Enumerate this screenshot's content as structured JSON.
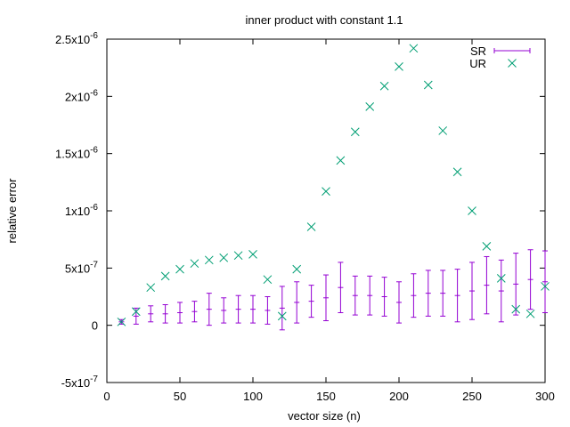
{
  "chart_data": {
    "type": "scatter",
    "title": "inner product with constant 1.1",
    "xlabel": "vector size (n)",
    "ylabel": "relative error",
    "xlim": [
      0,
      300
    ],
    "ylim": [
      -5e-07,
      2.5e-06
    ],
    "x_ticks": [
      0,
      50,
      100,
      150,
      200,
      250,
      300
    ],
    "y_ticks": [
      {
        "value": -5e-07,
        "base": "-5x10",
        "exp": "-7"
      },
      {
        "value": 0,
        "base": "0",
        "exp": ""
      },
      {
        "value": 5e-07,
        "base": "5x10",
        "exp": "-7"
      },
      {
        "value": 1e-06,
        "base": "1x10",
        "exp": "-6"
      },
      {
        "value": 1.5e-06,
        "base": "1.5x10",
        "exp": "-6"
      },
      {
        "value": 2e-06,
        "base": "2x10",
        "exp": "-6"
      },
      {
        "value": 2.5e-06,
        "base": "2.5x10",
        "exp": "-6"
      }
    ],
    "legend_position": "top-right",
    "grid": false,
    "series": [
      {
        "name": "SR",
        "style": "errorbars",
        "color": "#9400d3",
        "x": [
          10,
          20,
          30,
          40,
          50,
          60,
          70,
          80,
          90,
          100,
          110,
          120,
          130,
          140,
          150,
          160,
          170,
          180,
          190,
          200,
          210,
          220,
          230,
          240,
          250,
          260,
          270,
          280,
          290,
          300
        ],
        "y": [
          3e-08,
          8e-08,
          1e-07,
          1e-07,
          1.1e-07,
          1.2e-07,
          1.4e-07,
          1.3e-07,
          1.4e-07,
          1.4e-07,
          1.3e-07,
          1.5e-07,
          2e-07,
          2.1e-07,
          2.4e-07,
          3.3e-07,
          2.6e-07,
          2.6e-07,
          2.5e-07,
          2e-07,
          2.6e-07,
          2.8e-07,
          2.8e-07,
          2.6e-07,
          3e-07,
          3.5e-07,
          3e-07,
          3.6e-07,
          4e-07,
          3.8e-07
        ],
        "y_err": [
          2e-08,
          7e-08,
          7e-08,
          8e-08,
          9e-08,
          9e-08,
          1.4e-07,
          1.1e-07,
          1.2e-07,
          1.2e-07,
          1.2e-07,
          1.9e-07,
          1.8e-07,
          1.4e-07,
          2e-07,
          2.2e-07,
          1.7e-07,
          1.7e-07,
          1.7e-07,
          1.8e-07,
          1.9e-07,
          2e-07,
          2e-07,
          2.3e-07,
          2.5e-07,
          2.5e-07,
          2.7e-07,
          2.7e-07,
          2.6e-07,
          2.7e-07
        ]
      },
      {
        "name": "UR",
        "style": "points-x",
        "color": "#009e73",
        "x": [
          10,
          20,
          30,
          40,
          50,
          60,
          70,
          80,
          90,
          100,
          110,
          120,
          130,
          140,
          150,
          160,
          170,
          180,
          190,
          200,
          210,
          220,
          230,
          240,
          250,
          260,
          270,
          280,
          290,
          300
        ],
        "y": [
          3e-08,
          1.2e-07,
          3.3e-07,
          4.3e-07,
          4.9e-07,
          5.4e-07,
          5.7e-07,
          5.9e-07,
          6.1e-07,
          6.2e-07,
          4e-07,
          8e-08,
          4.9e-07,
          8.6e-07,
          1.17e-06,
          1.44e-06,
          1.69e-06,
          1.91e-06,
          2.09e-06,
          2.26e-06,
          2.42e-06,
          2.1e-06,
          1.7e-06,
          1.34e-06,
          1e-06,
          6.9e-07,
          4.1e-07,
          1.4e-07,
          1e-07,
          3.4e-07
        ]
      }
    ]
  }
}
